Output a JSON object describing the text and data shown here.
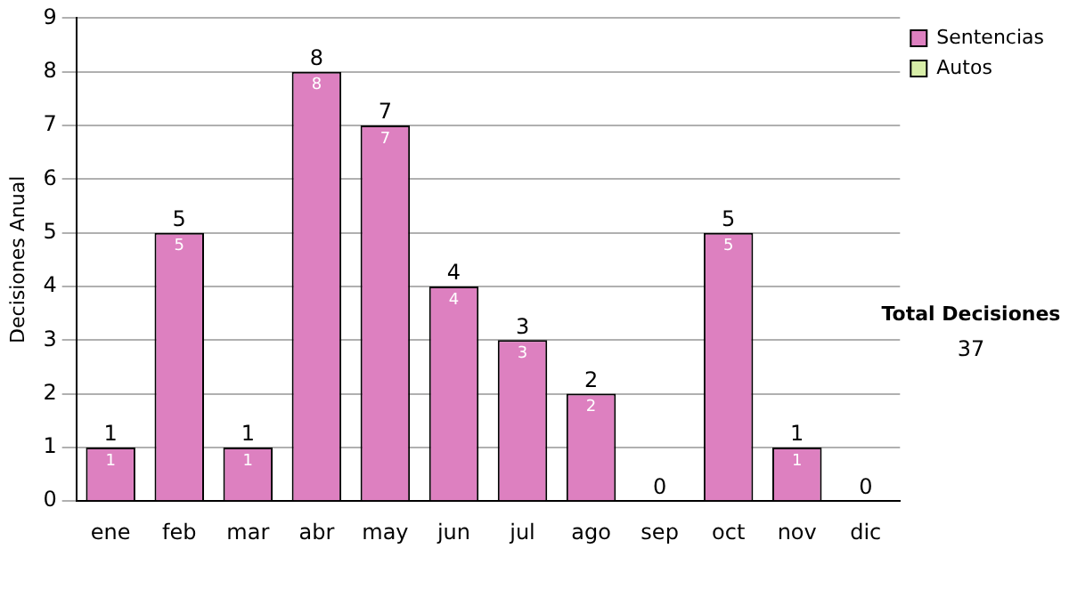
{
  "chart_data": {
    "type": "bar",
    "stacked": true,
    "ylabel": "Decisiones Anual",
    "categories": [
      "ene",
      "feb",
      "mar",
      "abr",
      "may",
      "jun",
      "jul",
      "ago",
      "sep",
      "oct",
      "nov",
      "dic"
    ],
    "series": [
      {
        "name": "Sentencias",
        "color": "#dd80c0",
        "values": [
          1,
          5,
          1,
          8,
          7,
          4,
          3,
          2,
          0,
          5,
          1,
          0
        ],
        "value_labels": [
          "1",
          "5",
          "1",
          "8",
          "7",
          "4",
          "3",
          "2",
          null,
          "5",
          "1",
          null
        ]
      },
      {
        "name": "Autos",
        "color": "#d8eea8",
        "values": [
          0,
          0,
          0,
          0,
          0,
          0,
          0,
          0,
          0,
          0,
          0,
          0
        ]
      }
    ],
    "totals": [
      "1",
      "5",
      "1",
      "8",
      "7",
      "4",
      "3",
      "2",
      "0",
      "5",
      "1",
      "0"
    ],
    "ylim": [
      0,
      9
    ],
    "yticks": [
      0,
      1,
      2,
      3,
      4,
      5,
      6,
      7,
      8,
      9
    ],
    "grid": "y",
    "legend": "right",
    "annotations": [
      "Total Decisiones",
      "37"
    ]
  }
}
